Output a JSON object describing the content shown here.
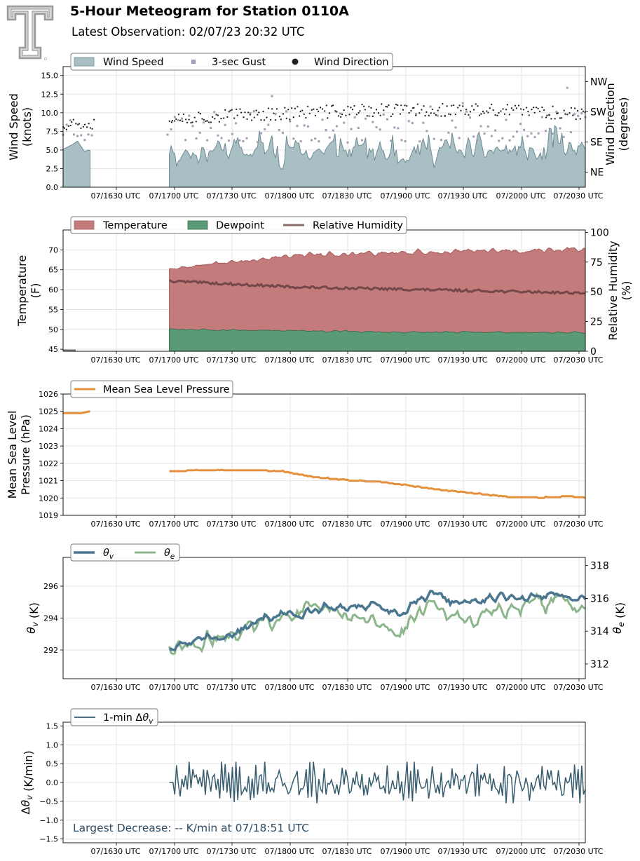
{
  "header": {
    "title": "5-Hour Meteogram for Station 0110A",
    "subtitle": "Latest Observation: 02/07/23 20:32 UTC"
  },
  "colors": {
    "wind_fill": "#a8bfc4",
    "wind_line": "#6d8c93",
    "gust": "#a79cb5",
    "direction": "#222222",
    "temperature": "#c47b7b",
    "temperature_line": "#a65a5a",
    "dewpoint": "#5a9a76",
    "dewpoint_line": "#3d6e52",
    "rh": "#744848",
    "pressure": "#e5903c",
    "theta_v": "#4a7690",
    "theta_e": "#8cb58c",
    "dtheta": "#365c6e",
    "grid": "#e3e3e3"
  },
  "time_ticks": [
    "07/1630 UTC",
    "07/1700 UTC",
    "07/1730 UTC",
    "07/1800 UTC",
    "07/1830 UTC",
    "07/1900 UTC",
    "07/1930 UTC",
    "07/2000 UTC",
    "07/2030 UTC"
  ],
  "chart_data": [
    {
      "id": "wind",
      "type": "area",
      "ylabel": "Wind Speed\n(knots)",
      "y2label": "Wind Direction\n(degrees)",
      "ylim": [
        0,
        16.2
      ],
      "yticks": [
        "0.0",
        "2.5",
        "5.0",
        "7.5",
        "10.0",
        "12.5",
        "15.0"
      ],
      "ytick_values": [
        0,
        2.5,
        5,
        7.5,
        10,
        12.5,
        15
      ],
      "y2ticks": [
        "NE",
        "SE",
        "SW",
        "NW"
      ],
      "y2tick_values": [
        45,
        135,
        225,
        315
      ],
      "y2lim": [
        0,
        360
      ],
      "legend": {
        "placement": "top-left",
        "entries": [
          "Wind Speed",
          "3-sec Gust",
          "Wind Direction"
        ]
      },
      "series": [
        {
          "name": "Wind Speed",
          "gen": {
            "kind": "wind",
            "base": 4.8,
            "amp": 1.6,
            "seed": 11
          }
        },
        {
          "name": "3-sec Gust",
          "gen": {
            "kind": "gust",
            "base": 8.2,
            "amp": 1.8,
            "seed": 23
          }
        },
        {
          "name": "Wind Direction",
          "gen": {
            "kind": "dir",
            "base": 215,
            "trend": 20,
            "amp": 18,
            "seed": 37
          }
        }
      ]
    },
    {
      "id": "temp",
      "type": "area",
      "ylabel": "Temperature\n(F)",
      "y2label": "Relative Humidity\n(%)",
      "ylim": [
        44.5,
        75
      ],
      "yticks": [
        "45",
        "50",
        "55",
        "60",
        "65",
        "70"
      ],
      "ytick_values": [
        45,
        50,
        55,
        60,
        65,
        70
      ],
      "y2ticks": [
        "0",
        "25",
        "50",
        "75",
        "100"
      ],
      "y2tick_values": [
        0,
        25,
        50,
        75,
        100
      ],
      "y2lim": [
        0,
        102
      ],
      "legend": {
        "placement": "top-left",
        "entries": [
          "Temperature",
          "Dewpoint",
          "Relative Humidity"
        ]
      },
      "series": [
        {
          "name": "Temperature",
          "start": 65.2,
          "end": 70.0,
          "gen": {
            "kind": "temp",
            "amp": 0.6,
            "seed": 5
          }
        },
        {
          "name": "Dewpoint",
          "start": 50.0,
          "end": 49.3,
          "gen": {
            "kind": "dew",
            "amp": 0.2,
            "seed": 9
          }
        },
        {
          "name": "Relative Humidity",
          "start": 59,
          "end": 48,
          "gen": {
            "kind": "rh",
            "amp": 0.6,
            "seed": 13
          }
        }
      ]
    },
    {
      "id": "pressure",
      "type": "line",
      "ylabel": "Mean Sea Level\nPressure (hPa)",
      "ylim": [
        1019,
        1026
      ],
      "yticks": [
        "1019",
        "1020",
        "1021",
        "1022",
        "1023",
        "1024",
        "1025",
        "1026"
      ],
      "ytick_values": [
        1019,
        1020,
        1021,
        1022,
        1023,
        1024,
        1025,
        1026
      ],
      "legend": {
        "placement": "top-left",
        "entries": [
          "Mean Sea Level Pressure"
        ]
      },
      "series": [
        {
          "name": "Mean Sea Level Pressure",
          "early": [
            1024.9,
            1024.9,
            1024.9,
            1025.0
          ],
          "anchors": [
            [
              0,
              1021.55
            ],
            [
              0.08,
              1021.6
            ],
            [
              0.17,
              1021.62
            ],
            [
              0.27,
              1021.55
            ],
            [
              0.35,
              1021.2
            ],
            [
              0.44,
              1021.0
            ],
            [
              0.5,
              1020.95
            ],
            [
              0.58,
              1020.7
            ],
            [
              0.66,
              1020.45
            ],
            [
              0.74,
              1020.25
            ],
            [
              0.82,
              1020.05
            ],
            [
              0.9,
              1020.02
            ],
            [
              0.96,
              1020.1
            ],
            [
              1.0,
              1020.02
            ]
          ]
        }
      ]
    },
    {
      "id": "theta",
      "type": "line",
      "ylabel": "θ_v (K)",
      "y2label": "θ_e (K)",
      "ylim": [
        290.2,
        297.8
      ],
      "yticks": [
        "292",
        "294",
        "296"
      ],
      "ytick_values": [
        292,
        294,
        296
      ],
      "y2ticks": [
        "312",
        "314",
        "316",
        "318"
      ],
      "y2tick_values": [
        312,
        314,
        316,
        318
      ],
      "y2lim": [
        311.1,
        318.5
      ],
      "legend": {
        "placement": "top-left",
        "entries": [
          "θ_v",
          "θ_e"
        ]
      },
      "series": [
        {
          "name": "θ_v",
          "anchors": [
            [
              0,
              292.2
            ],
            [
              0.08,
              292.6
            ],
            [
              0.17,
              293.2
            ],
            [
              0.23,
              294.0
            ],
            [
              0.3,
              294.3
            ],
            [
              0.38,
              294.6
            ],
            [
              0.48,
              294.9
            ],
            [
              0.55,
              294.3
            ],
            [
              0.63,
              295.4
            ],
            [
              0.7,
              294.9
            ],
            [
              0.8,
              295.3
            ],
            [
              0.9,
              295.4
            ],
            [
              1.0,
              295.2
            ]
          ],
          "amp": 0.25,
          "seed": 17
        },
        {
          "name": "θ_e",
          "anchors": [
            [
              0,
              312.9
            ],
            [
              0.08,
              313.2
            ],
            [
              0.17,
              313.9
            ],
            [
              0.23,
              314.8
            ],
            [
              0.3,
              315.1
            ],
            [
              0.38,
              315.2
            ],
            [
              0.48,
              314.6
            ],
            [
              0.55,
              314.0
            ],
            [
              0.63,
              315.7
            ],
            [
              0.7,
              314.5
            ],
            [
              0.8,
              315.2
            ],
            [
              0.9,
              315.8
            ],
            [
              1.0,
              315.6
            ]
          ],
          "amp": 0.45,
          "seed": 29
        }
      ]
    },
    {
      "id": "dtheta",
      "type": "line",
      "ylabel": "Δθ_v (K/min)",
      "ylim": [
        -1.6,
        1.6
      ],
      "yticks": [
        "−1.5",
        "−1.0",
        "−0.5",
        "0.0",
        "0.5",
        "1.0",
        "1.5"
      ],
      "ytick_values": [
        -1.5,
        -1.0,
        -0.5,
        0,
        0.5,
        1.0,
        1.5
      ],
      "legend": {
        "placement": "top-left",
        "entries": [
          "1-min Δθ_v"
        ]
      },
      "annotation": "Largest Decrease: -- K/min at 07/18:51 UTC",
      "series": [
        {
          "name": "1-min Δθ_v",
          "gen": {
            "kind": "noise",
            "amp": 0.28,
            "seed": 41
          }
        }
      ]
    }
  ]
}
